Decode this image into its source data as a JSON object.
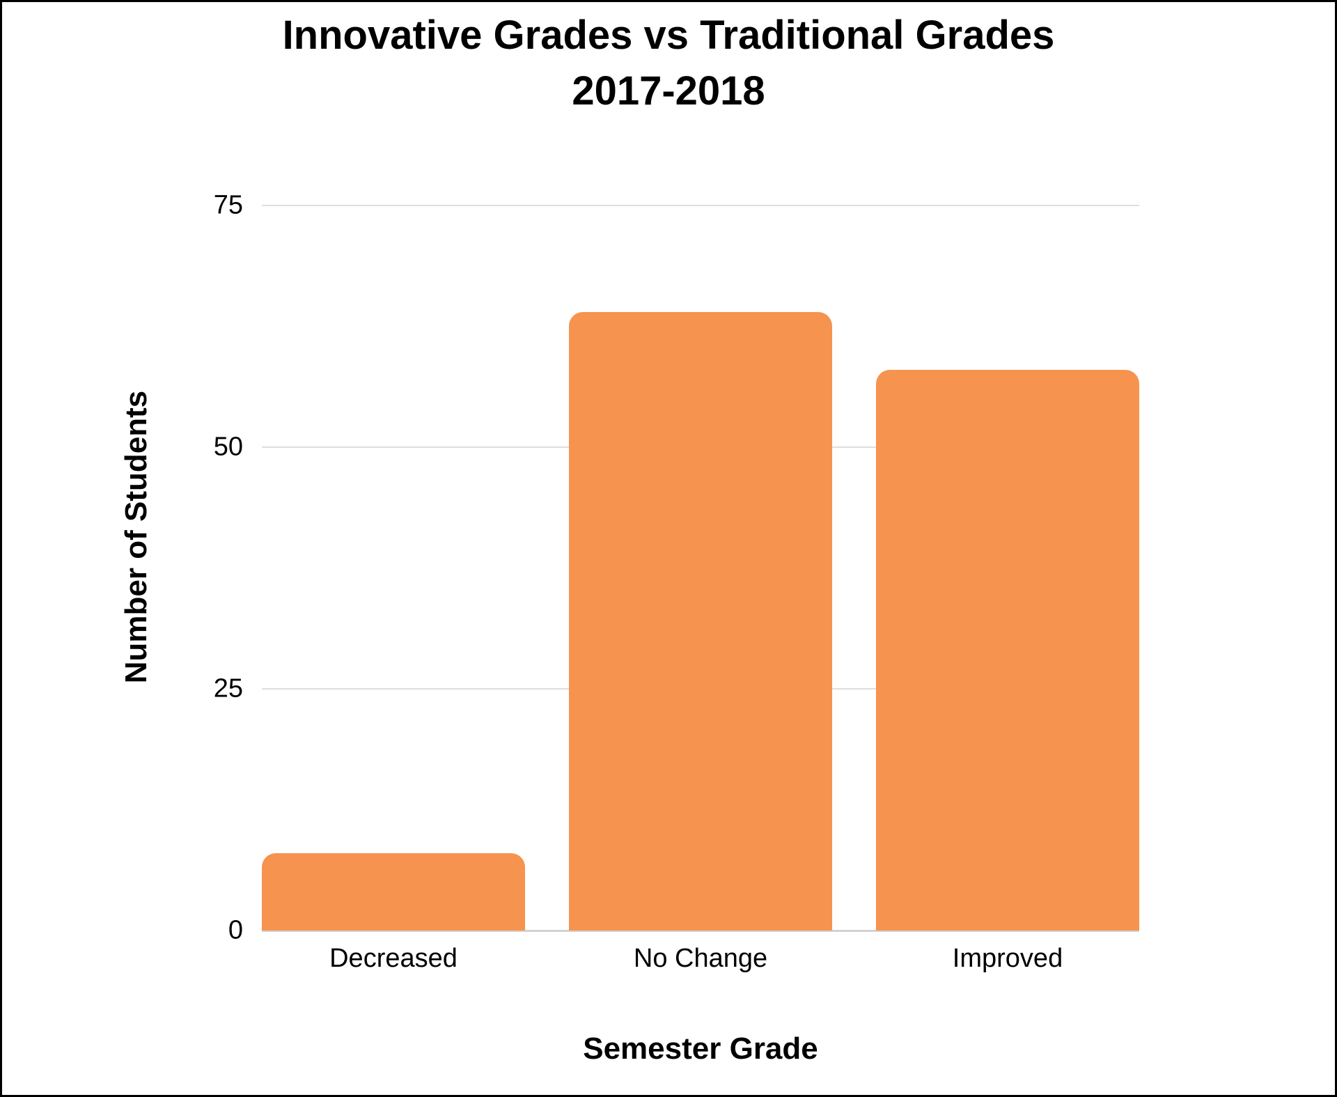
{
  "chart_data": {
    "type": "bar",
    "title": "Innovative Grades vs Traditional Grades",
    "subtitle": "2017-2018",
    "xlabel": "Semester Grade",
    "ylabel": "Number of Students",
    "categories": [
      "Decreased",
      "No Change",
      "Improved"
    ],
    "values": [
      8,
      64,
      58
    ],
    "ylim": [
      0,
      75
    ],
    "yticks": [
      0,
      25,
      50,
      75
    ],
    "grid": true,
    "legend": "none",
    "bar_color": "#f6934f",
    "gridline_color": "#dedede",
    "baseline_color": "#d2d2d2",
    "text_color": "#000000",
    "background_color": "#ffffff"
  }
}
